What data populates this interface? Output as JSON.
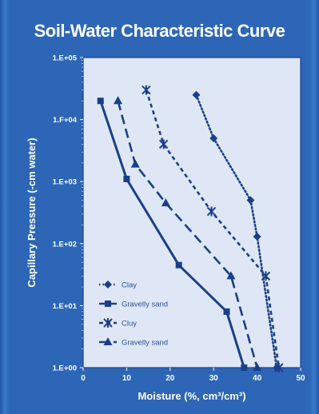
{
  "chart_data": {
    "type": "line",
    "title": "Soil-Water Characteristic Curve",
    "xlabel": "Moisture (%, cm³/cm³)",
    "ylabel": "Capillary Pressure (-cm water)",
    "xlim": [
      0,
      50
    ],
    "ylim": [
      1,
      100000
    ],
    "y_scale": "log",
    "x_ticks": [
      "0",
      "10",
      "20",
      "30",
      "40",
      "50"
    ],
    "y_ticks": [
      "1.E+00",
      "1.E+01",
      "1.E+02",
      "1.E+03",
      "1.F+04",
      "1.E+05"
    ],
    "y_tick_values": [
      1,
      10,
      100,
      1000,
      10000,
      100000
    ],
    "grid": false,
    "legend_position": "bottom-left",
    "series": [
      {
        "name": "Clay",
        "label": "Clay",
        "style": "dotted",
        "marker": "diamond",
        "color": "#1a3f8a",
        "x": [
          26,
          30,
          38.5,
          40,
          44.5
        ],
        "y": [
          25000,
          5000,
          500,
          130,
          1
        ]
      },
      {
        "name": "Gravelly sand",
        "label": "Gravelly sand",
        "style": "solid",
        "marker": "square",
        "color": "#1a3f8a",
        "x": [
          4,
          10,
          22,
          33,
          37
        ],
        "y": [
          20000,
          1100,
          45,
          8,
          1
        ]
      },
      {
        "name": "Clay",
        "label": "Cluy",
        "style": "short-dash",
        "marker": "asterisk",
        "color": "#1a3f8a",
        "x": [
          14.5,
          18.5,
          29.5,
          42,
          45
        ],
        "y": [
          30000,
          4000,
          330,
          30,
          1
        ]
      },
      {
        "name": "Gravelly sand",
        "label": "Gravelly sand",
        "style": "long-dash",
        "marker": "triangle",
        "color": "#1a3f8a",
        "x": [
          8,
          12,
          19,
          34,
          40
        ],
        "y": [
          20000,
          1900,
          450,
          30,
          1
        ]
      }
    ],
    "colors": {
      "background": "#2d66b7",
      "plot_area": "#dfe7f6",
      "axis_text": "#ffffff",
      "series": "#1a3f8a"
    }
  }
}
